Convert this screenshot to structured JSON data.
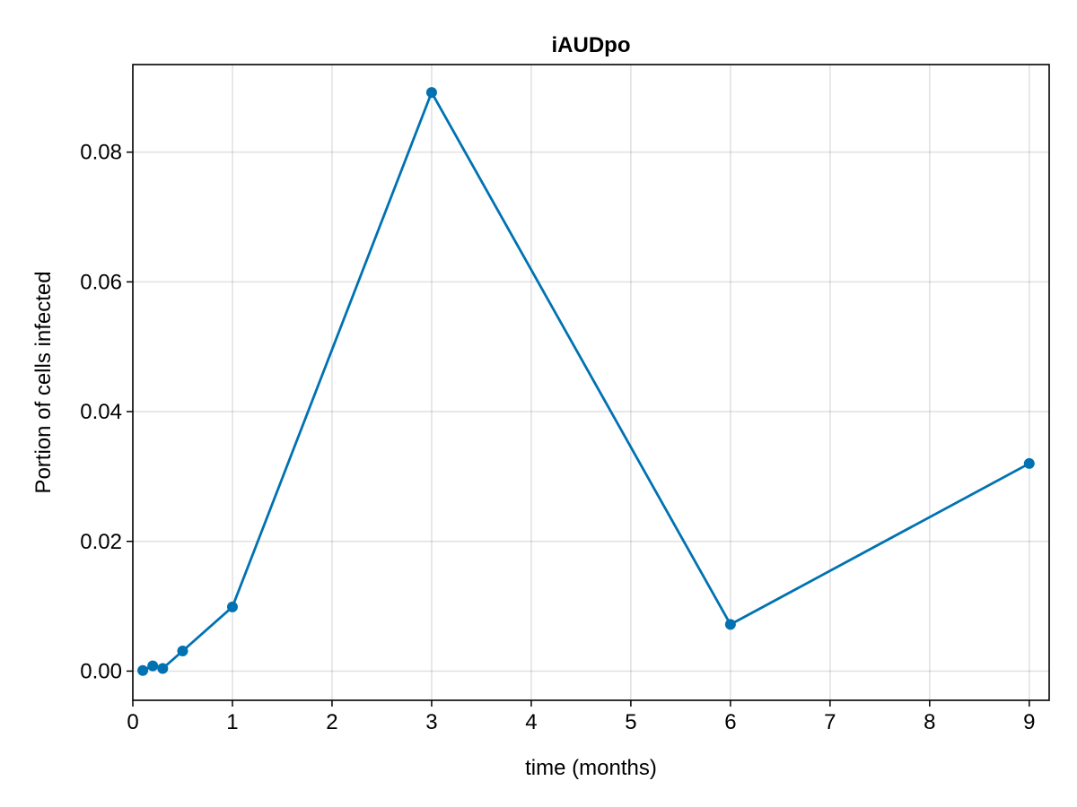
{
  "chart_data": {
    "type": "line",
    "title": "iAUDpo",
    "xlabel": "time (months)",
    "ylabel": "Portion of cells infected",
    "xlim": [
      0,
      9.2
    ],
    "ylim": [
      -0.0045,
      0.0935
    ],
    "xticks": [
      0,
      1,
      2,
      3,
      4,
      5,
      6,
      7,
      8,
      9
    ],
    "yticks": [
      0.0,
      0.02,
      0.04,
      0.06,
      0.08
    ],
    "xtick_labels": [
      "0",
      "1",
      "2",
      "3",
      "4",
      "5",
      "6",
      "7",
      "8",
      "9"
    ],
    "ytick_labels": [
      "0.00",
      "0.02",
      "0.04",
      "0.06",
      "0.08"
    ],
    "grid": true,
    "color": "#0072b2",
    "series": [
      {
        "x": [
          0.1,
          0.2,
          0.3,
          0.5,
          1,
          3,
          6,
          9
        ],
        "y": [
          0.0001,
          0.0008,
          0.0004,
          0.0031,
          0.0099,
          0.0892,
          0.0072,
          0.032
        ]
      }
    ]
  }
}
